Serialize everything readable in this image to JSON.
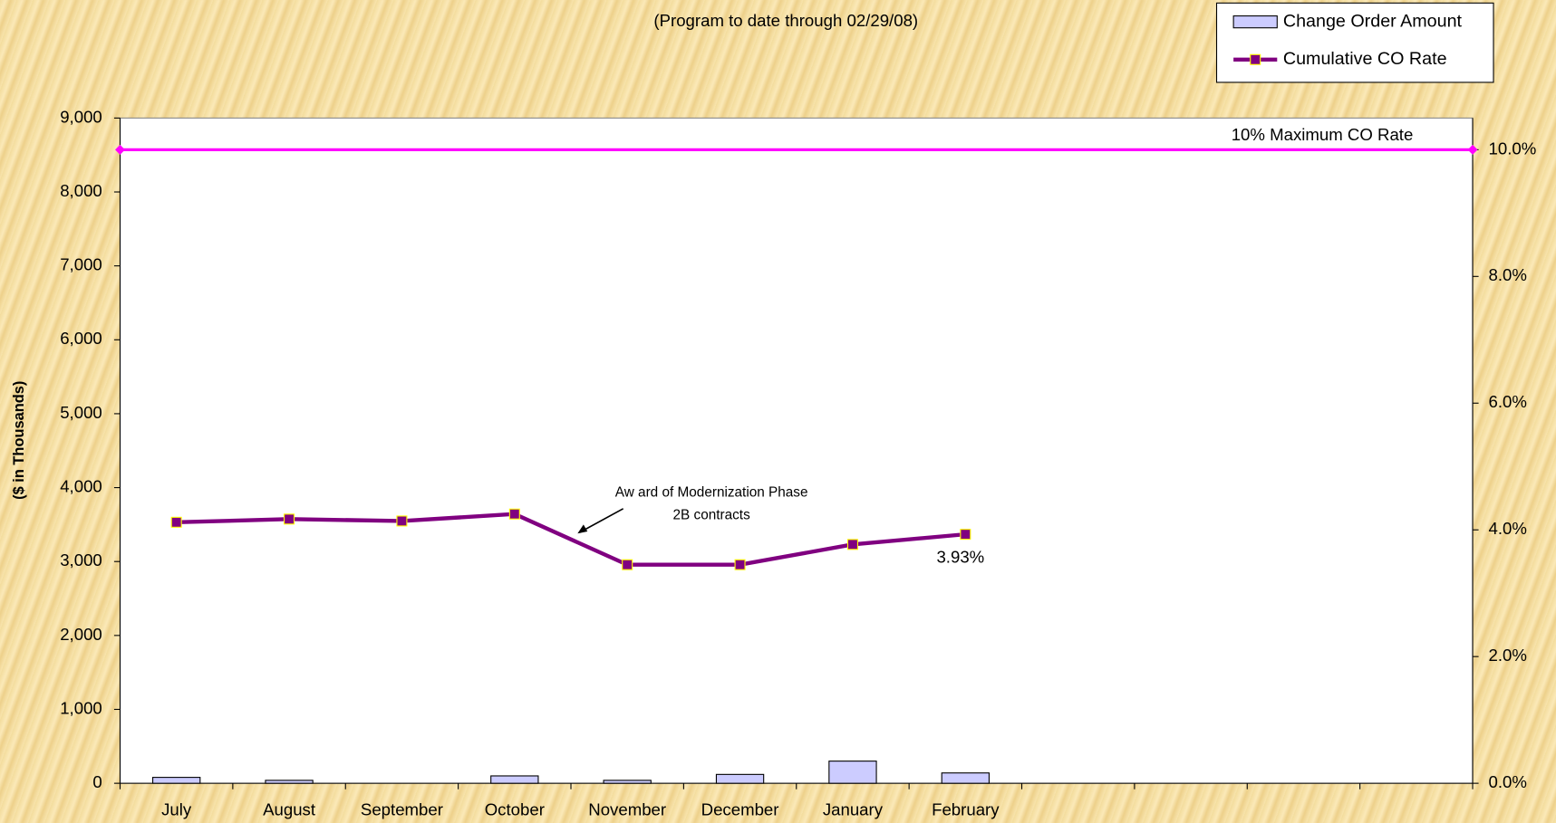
{
  "chart_data": {
    "type": "bar-line",
    "subtitle": "(Program to date through 02/29/08)",
    "ylabel": "($ in Thousands)",
    "categories": [
      "July",
      "August",
      "September",
      "October",
      "November",
      "December",
      "January",
      "February",
      null,
      null,
      null,
      null
    ],
    "series": [
      {
        "name": "Change Order Amount",
        "type": "bar",
        "color": "#ccccff",
        "values": [
          80,
          40,
          0,
          100,
          40,
          120,
          300,
          140,
          null,
          null,
          null,
          null
        ]
      },
      {
        "name": "Cumulative CO Rate",
        "type": "line",
        "axis": "y2",
        "color": "#800080",
        "values": [
          4.12,
          4.17,
          4.14,
          4.25,
          3.45,
          3.45,
          3.77,
          3.93,
          null,
          null,
          null,
          null
        ],
        "value_labels": [
          null,
          null,
          null,
          null,
          null,
          null,
          null,
          "3.93%",
          null,
          null,
          null,
          null
        ]
      }
    ],
    "reference_line": {
      "value": 10,
      "label": "10% Maximum CO Rate",
      "color": "#ff00ff",
      "axis": "y2"
    },
    "annotation": [
      "Aw ard of Modernization Phase",
      "2B contracts"
    ],
    "ylim": [
      0,
      9000
    ],
    "yticks": [
      0,
      {
        "value": 1000,
        "label": "1,000"
      },
      {
        "value": 2000,
        "label": "2,000"
      },
      {
        "value": 3000,
        "label": "3,000"
      },
      {
        "value": 4000,
        "label": "4,000"
      },
      {
        "value": 5000,
        "label": "5,000"
      },
      {
        "value": 6000,
        "label": "6,000"
      },
      {
        "value": 7000,
        "label": "7,000"
      },
      {
        "value": 8000,
        "label": "8,000"
      },
      {
        "value": 9000,
        "label": "9,000"
      }
    ],
    "y2lim": [
      0,
      10.5
    ],
    "y2ticks": [
      {
        "value": 0,
        "label": "0.0%"
      },
      {
        "value": 2,
        "label": "2.0%"
      },
      {
        "value": 4,
        "label": "4.0%"
      },
      {
        "value": 6,
        "label": "6.0%"
      },
      {
        "value": 8,
        "label": "8.0%"
      },
      {
        "value": 10,
        "label": "10.0%"
      }
    ],
    "legend": "top-right"
  }
}
